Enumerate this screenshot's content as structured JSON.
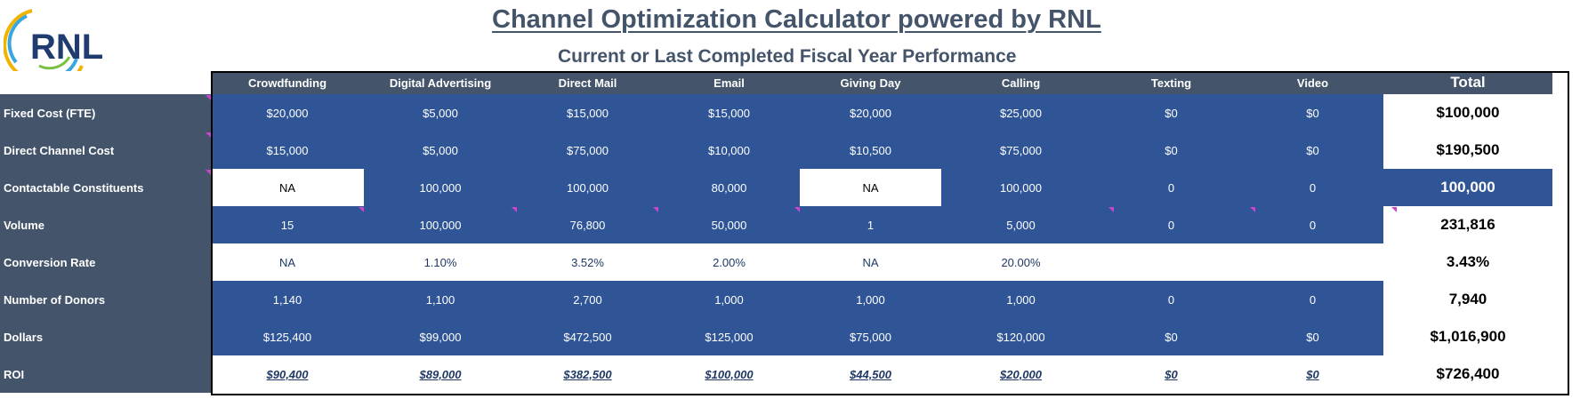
{
  "logo_text": "RNL",
  "title": "Channel Optimization Calculator powered by RNL",
  "subtitle": "Current or Last Completed Fiscal Year Performance",
  "columns": [
    "Crowdfunding",
    "Digital Advertising",
    "Direct Mail",
    "Email",
    "Giving Day",
    "Calling",
    "Texting",
    "Video",
    "Total"
  ],
  "rows": [
    {
      "label": "Fixed Cost (FTE)",
      "values": [
        "$20,000",
        "$5,000",
        "$15,000",
        "$15,000",
        "$20,000",
        "$25,000",
        "$0",
        "$0"
      ],
      "total": "$100,000"
    },
    {
      "label": "Direct Channel Cost",
      "values": [
        "$15,000",
        "$5,000",
        "$75,000",
        "$10,000",
        "$10,500",
        "$75,000",
        "$0",
        "$0"
      ],
      "total": "$190,500"
    },
    {
      "label": "Contactable Constituents",
      "values": [
        "NA",
        "100,000",
        "100,000",
        "80,000",
        "NA",
        "100,000",
        "0",
        "0"
      ],
      "total": "100,000"
    },
    {
      "label": "Volume",
      "values": [
        "15",
        "100,000",
        "76,800",
        "50,000",
        "1",
        "5,000",
        "0",
        "0"
      ],
      "total": "231,816"
    },
    {
      "label": "Conversion Rate",
      "values": [
        "NA",
        "1.10%",
        "3.52%",
        "2.00%",
        "NA",
        "20.00%",
        "",
        ""
      ],
      "total": "3.43%"
    },
    {
      "label": "Number of Donors",
      "values": [
        "1,140",
        "1,100",
        "2,700",
        "1,000",
        "1,000",
        "1,000",
        "0",
        "0"
      ],
      "total": "7,940"
    },
    {
      "label": "Dollars",
      "values": [
        "$125,400",
        "$99,000",
        "$472,500",
        "$125,000",
        "$75,000",
        "$120,000",
        "$0",
        "$0"
      ],
      "total": "$1,016,900"
    },
    {
      "label": "ROI",
      "values": [
        "$90,400",
        "$89,000",
        "$382,500",
        "$100,000",
        "$44,500",
        "$20,000",
        "$0",
        "$0"
      ],
      "total": "$726,400"
    }
  ],
  "colors": {
    "header": "#44546a",
    "cell_blue": "#2f5597",
    "comment_marker": "#cc44cc"
  }
}
